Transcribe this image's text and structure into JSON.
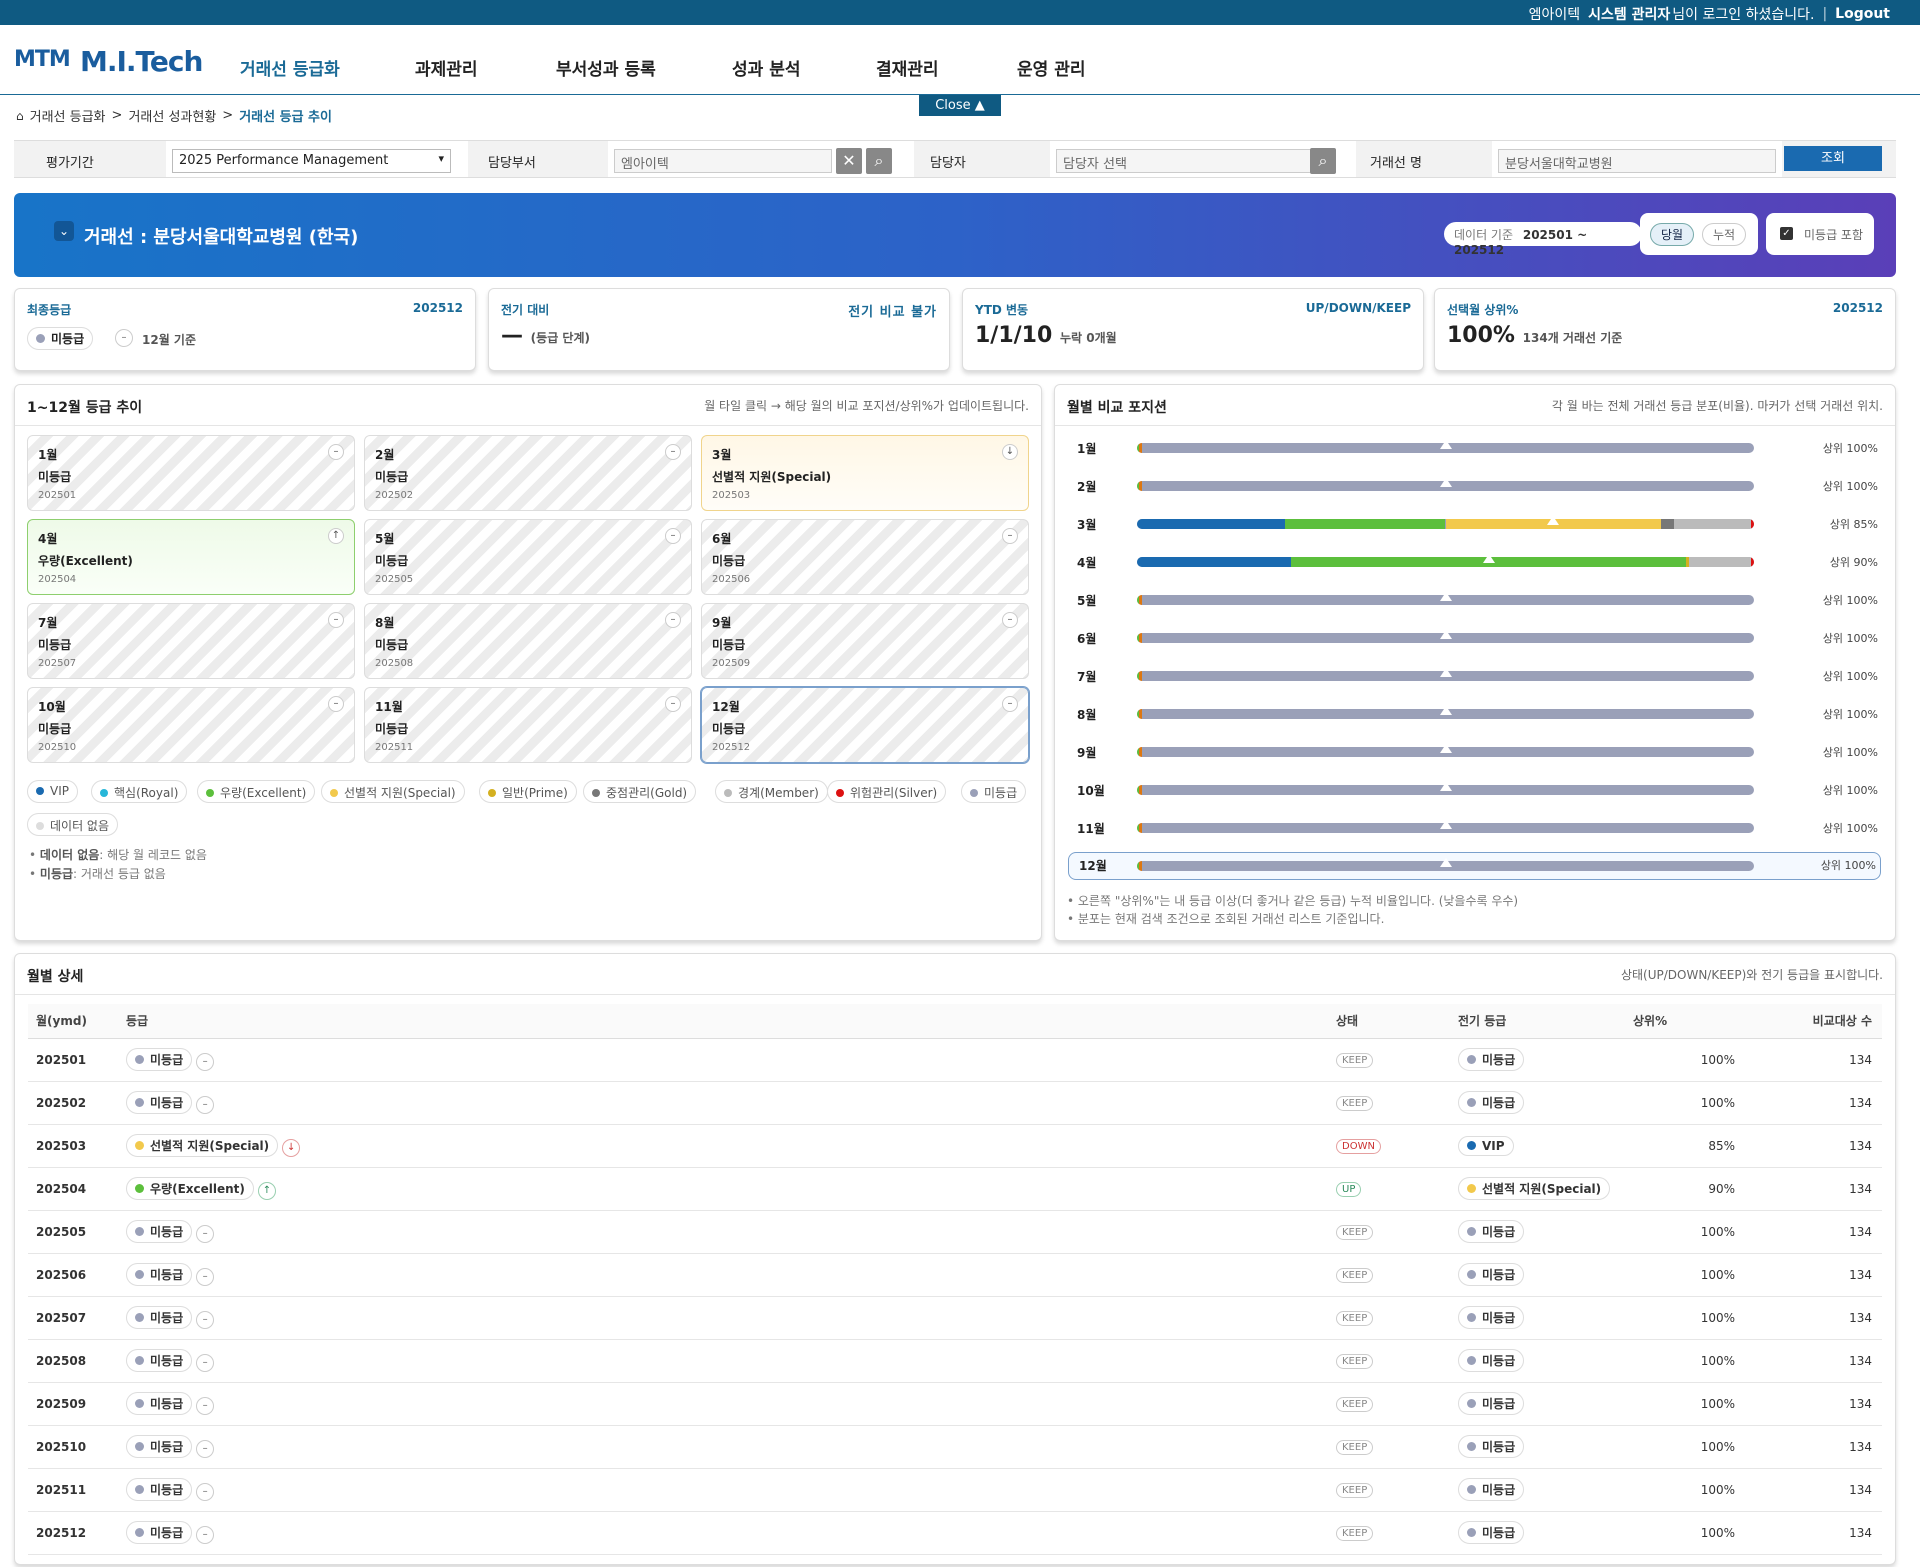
{
  "topbar": {
    "company": "엠아이텍",
    "user": "시스템 관리자",
    "msg": "님이 로그인 하셨습니다.",
    "sep": "|",
    "logout": "Logout"
  },
  "logo": {
    "mark": "MTM",
    "text": "M.I.Tech"
  },
  "nav": [
    "거래선 등급화",
    "과제관리",
    "부서성과 등록",
    "성과 분석",
    "결재관리",
    "운영 관리"
  ],
  "close_label": "Close ▲",
  "breadcrumb": {
    "a": "거래선 등급화",
    "b": "거래선 성과현황",
    "c": "거래선 등급 추이",
    "sep": ">"
  },
  "filter": {
    "period_label": "평가기간",
    "period_value": "2025 Performance Management",
    "dept_label": "담당부서",
    "dept_value": "엠아이텍",
    "person_label": "담당자",
    "person_placeholder": "담당자 선택",
    "client_label": "거래선 명",
    "client_value": "분당서울대학교병원",
    "search_btn": "조회"
  },
  "banner": {
    "title": "거래선 : 분당서울대학교병원 (한국)",
    "data_label": "데이터 기준",
    "data_range": "202501 ~ 202512",
    "tab_month": "당월",
    "tab_cum": "누적",
    "include_label": "미등급 포함"
  },
  "kpis": [
    {
      "label": "최종등급",
      "right": "202512",
      "badge": "미등급",
      "sub": "12월 기준",
      "dash": "–"
    },
    {
      "label": "전기 대비",
      "right": "전기 비교 불가",
      "value": "—",
      "sub": "(등급 단계)"
    },
    {
      "label": "YTD 변동",
      "right": "UP/DOWN/KEEP",
      "value": "1/1/10",
      "sub": "누락 0개월"
    },
    {
      "label": "선택월 상위%",
      "right": "202512",
      "value": "100%",
      "sub": "134개 거래선 기준"
    }
  ],
  "trend": {
    "title": "1~12월 등급 추이",
    "hint": "월 타일 클릭 → 해당 월의 비교 포지션/상위%가 업데이트됩니다.",
    "tiles": [
      {
        "m": "1월",
        "g": "미등급",
        "c": "202501",
        "b": "–"
      },
      {
        "m": "2월",
        "g": "미등급",
        "c": "202502",
        "b": "–"
      },
      {
        "m": "3월",
        "g": "선별적 지원(Special)",
        "c": "202503",
        "b": "↓"
      },
      {
        "m": "4월",
        "g": "우량(Excellent)",
        "c": "202504",
        "b": "↑"
      },
      {
        "m": "5월",
        "g": "미등급",
        "c": "202505",
        "b": "–"
      },
      {
        "m": "6월",
        "g": "미등급",
        "c": "202506",
        "b": "–"
      },
      {
        "m": "7월",
        "g": "미등급",
        "c": "202507",
        "b": "–"
      },
      {
        "m": "8월",
        "g": "미등급",
        "c": "202508",
        "b": "–"
      },
      {
        "m": "9월",
        "g": "미등급",
        "c": "202509",
        "b": "–"
      },
      {
        "m": "10월",
        "g": "미등급",
        "c": "202510",
        "b": "–"
      },
      {
        "m": "11월",
        "g": "미등급",
        "c": "202511",
        "b": "–"
      },
      {
        "m": "12월",
        "g": "미등급",
        "c": "202512",
        "b": "–"
      }
    ],
    "legend": [
      {
        "label": "VIP",
        "color": "#1a6ab0"
      },
      {
        "label": "핵심(Royal)",
        "color": "#27b6d8"
      },
      {
        "label": "우량(Excellent)",
        "color": "#5cbf3c"
      },
      {
        "label": "선별적 지원(Special)",
        "color": "#f2c94c"
      },
      {
        "label": "일반(Prime)",
        "color": "#d4b020"
      },
      {
        "label": "중점관리(Gold)",
        "color": "#777777"
      },
      {
        "label": "경계(Member)",
        "color": "#bbbbbb"
      },
      {
        "label": "위험관리(Silver)",
        "color": "#dd1111"
      },
      {
        "label": "미등급",
        "color": "#9aa0b8"
      },
      {
        "label": "데이터 없음",
        "color": "#dddddd"
      }
    ],
    "note1_b": "데이터 없음",
    "note1": ": 해당 월 레코드 없음",
    "note2_b": "미등급",
    "note2": ": 거래선 등급 없음"
  },
  "compare": {
    "title": "월별 비교 포지션",
    "hint": "각 월 바는 전체 거래선 등급 분포(비율). 마커가 선택 거래선 위치.",
    "rows": [
      {
        "m": "1월",
        "pct": "상위 100%"
      },
      {
        "m": "2월",
        "pct": "상위 100%"
      },
      {
        "m": "3월",
        "pct": "상위 85%"
      },
      {
        "m": "4월",
        "pct": "상위 90%"
      },
      {
        "m": "5월",
        "pct": "상위 100%"
      },
      {
        "m": "6월",
        "pct": "상위 100%"
      },
      {
        "m": "7월",
        "pct": "상위 100%"
      },
      {
        "m": "8월",
        "pct": "상위 100%"
      },
      {
        "m": "9월",
        "pct": "상위 100%"
      },
      {
        "m": "10월",
        "pct": "상위 100%"
      },
      {
        "m": "11월",
        "pct": "상위 100%"
      },
      {
        "m": "12월",
        "pct": "상위 100%"
      }
    ],
    "note1": "• 오른쪽 \"상위%\"는 내 등급 이상(더 좋거나 같은 등급) 누적 비율입니다. (낮을수록 우수)",
    "note2": "• 분포는 현재 검색 조건으로 조회된 거래선 리스트 기준입니다."
  },
  "detail": {
    "title": "월별 상세",
    "hint": "상태(UP/DOWN/KEEP)와 전기 등급을 표시합니다.",
    "headers": [
      "월(ymd)",
      "등급",
      "상태",
      "전기 등급",
      "상위%",
      "비교대상 수"
    ],
    "rows": [
      {
        "ymd": "202501",
        "grade": "미등급",
        "arrow": "–",
        "status": "KEEP",
        "prev": "미등급",
        "pct": "100%",
        "n": "134"
      },
      {
        "ymd": "202502",
        "grade": "미등급",
        "arrow": "–",
        "status": "KEEP",
        "prev": "미등급",
        "pct": "100%",
        "n": "134"
      },
      {
        "ymd": "202503",
        "grade": "선별적 지원(Special)",
        "arrow": "↓",
        "status": "DOWN",
        "prev": "VIP",
        "pct": "85%",
        "n": "134"
      },
      {
        "ymd": "202504",
        "grade": "우량(Excellent)",
        "arrow": "↑",
        "status": "UP",
        "prev": "선별적 지원(Special)",
        "pct": "90%",
        "n": "134"
      },
      {
        "ymd": "202505",
        "grade": "미등급",
        "arrow": "–",
        "status": "KEEP",
        "prev": "미등급",
        "pct": "100%",
        "n": "134"
      },
      {
        "ymd": "202506",
        "grade": "미등급",
        "arrow": "–",
        "status": "KEEP",
        "prev": "미등급",
        "pct": "100%",
        "n": "134"
      },
      {
        "ymd": "202507",
        "grade": "미등급",
        "arrow": "–",
        "status": "KEEP",
        "prev": "미등급",
        "pct": "100%",
        "n": "134"
      },
      {
        "ymd": "202508",
        "grade": "미등급",
        "arrow": "–",
        "status": "KEEP",
        "prev": "미등급",
        "pct": "100%",
        "n": "134"
      },
      {
        "ymd": "202509",
        "grade": "미등급",
        "arrow": "–",
        "status": "KEEP",
        "prev": "미등급",
        "pct": "100%",
        "n": "134"
      },
      {
        "ymd": "202510",
        "grade": "미등급",
        "arrow": "–",
        "status": "KEEP",
        "prev": "미등급",
        "pct": "100%",
        "n": "134"
      },
      {
        "ymd": "202511",
        "grade": "미등급",
        "arrow": "–",
        "status": "KEEP",
        "prev": "미등급",
        "pct": "100%",
        "n": "134"
      },
      {
        "ymd": "202512",
        "grade": "미등급",
        "arrow": "–",
        "status": "KEEP",
        "prev": "미등급",
        "pct": "100%",
        "n": "134"
      }
    ]
  }
}
